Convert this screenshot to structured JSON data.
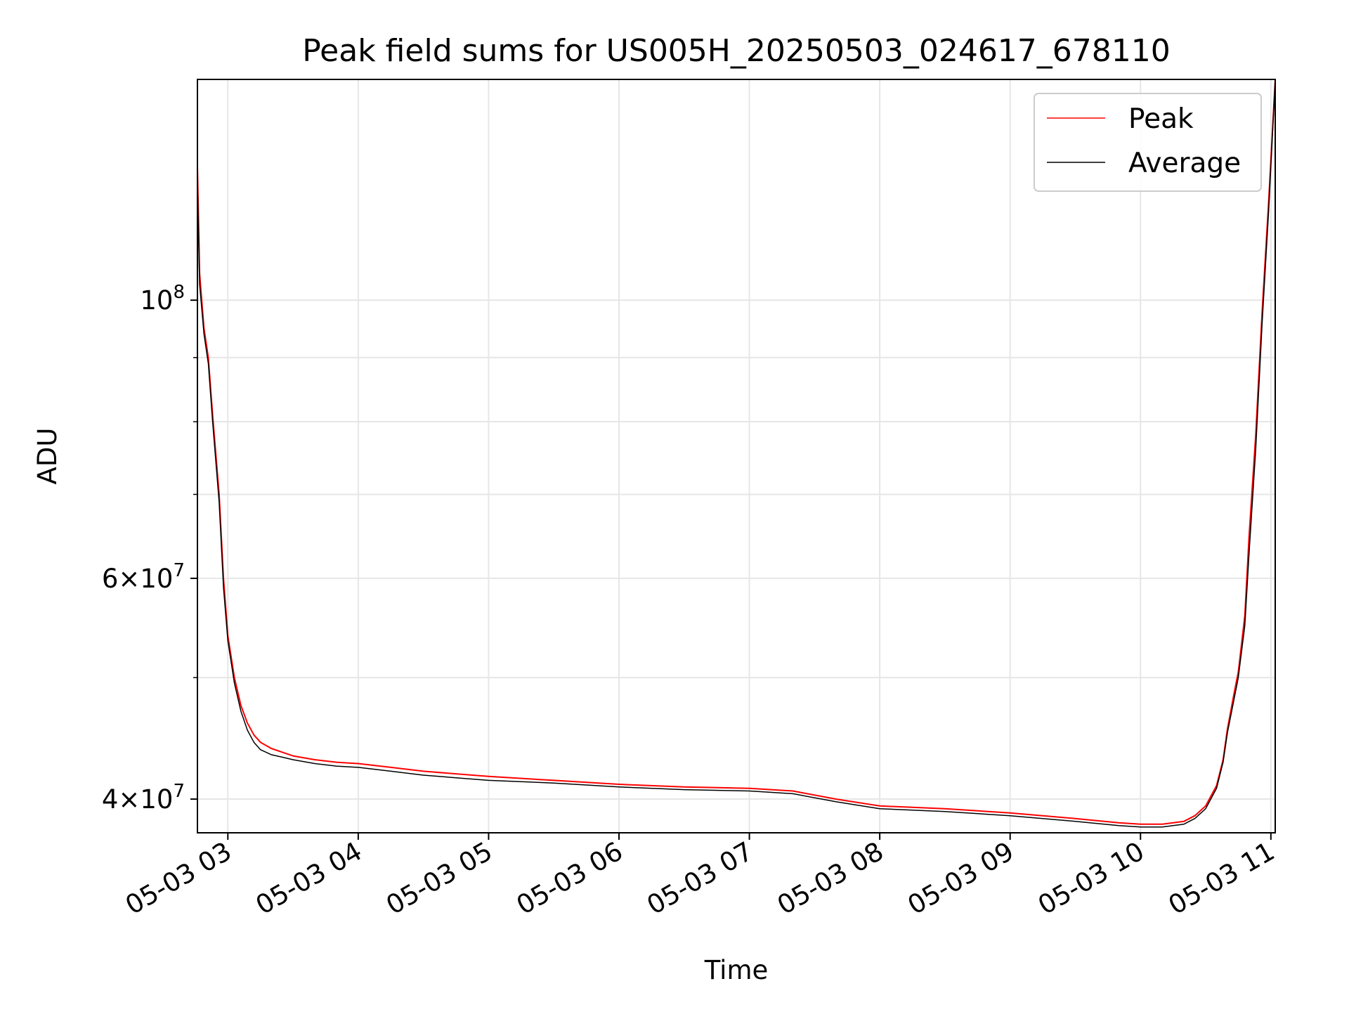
{
  "chart_data": {
    "type": "line",
    "title": "Peak field sums for US005H_20250503_024617_678110",
    "xlabel": "Time",
    "ylabel": "ADU",
    "y_scale": "log",
    "ylim": [
      37600000,
      150000000
    ],
    "xlim": [
      "2025-05-03 02:46",
      "2025-05-03 11:02"
    ],
    "grid": true,
    "legend_position": "top-right",
    "x_ticks": [
      {
        "t": "2025-05-03 03:00",
        "label": "05-03 03"
      },
      {
        "t": "2025-05-03 04:00",
        "label": "05-03 04"
      },
      {
        "t": "2025-05-03 05:00",
        "label": "05-03 05"
      },
      {
        "t": "2025-05-03 06:00",
        "label": "05-03 06"
      },
      {
        "t": "2025-05-03 07:00",
        "label": "05-03 07"
      },
      {
        "t": "2025-05-03 08:00",
        "label": "05-03 08"
      },
      {
        "t": "2025-05-03 09:00",
        "label": "05-03 09"
      },
      {
        "t": "2025-05-03 10:00",
        "label": "05-03 10"
      },
      {
        "t": "2025-05-03 11:00",
        "label": "05-03 11"
      }
    ],
    "y_ticks": [
      {
        "value": 40000000,
        "base": "4",
        "exp": "7"
      },
      {
        "value": 60000000,
        "base": "6",
        "exp": "7"
      },
      {
        "value": 100000000,
        "base": "",
        "exp": "8"
      }
    ],
    "series": [
      {
        "name": "Peak",
        "color": "#ff0000",
        "x": [
          "2025-05-03 02:46",
          "2025-05-03 02:47",
          "2025-05-03 02:49",
          "2025-05-03 02:51",
          "2025-05-03 02:53",
          "2025-05-03 02:56",
          "2025-05-03 02:58",
          "2025-05-03 03:00",
          "2025-05-03 03:03",
          "2025-05-03 03:06",
          "2025-05-03 03:09",
          "2025-05-03 03:12",
          "2025-05-03 03:15",
          "2025-05-03 03:20",
          "2025-05-03 03:25",
          "2025-05-03 03:30",
          "2025-05-03 03:40",
          "2025-05-03 03:50",
          "2025-05-03 04:00",
          "2025-05-03 04:15",
          "2025-05-03 04:30",
          "2025-05-03 04:45",
          "2025-05-03 05:00",
          "2025-05-03 05:30",
          "2025-05-03 06:00",
          "2025-05-03 06:30",
          "2025-05-03 07:00",
          "2025-05-03 07:20",
          "2025-05-03 07:40",
          "2025-05-03 08:00",
          "2025-05-03 08:30",
          "2025-05-03 09:00",
          "2025-05-03 09:30",
          "2025-05-03 09:50",
          "2025-05-03 10:00",
          "2025-05-03 10:10",
          "2025-05-03 10:20",
          "2025-05-03 10:25",
          "2025-05-03 10:30",
          "2025-05-03 10:35",
          "2025-05-03 10:38",
          "2025-05-03 10:40",
          "2025-05-03 10:43",
          "2025-05-03 10:45",
          "2025-05-03 10:48",
          "2025-05-03 10:50",
          "2025-05-03 10:53",
          "2025-05-03 10:56",
          "2025-05-03 10:59",
          "2025-05-03 11:02"
        ],
        "values": [
          128000000,
          105000000,
          95000000,
          90000000,
          81000000,
          70000000,
          60000000,
          54000000,
          50000000,
          47500000,
          46000000,
          45000000,
          44400000,
          43900000,
          43600000,
          43300000,
          43000000,
          42800000,
          42700000,
          42400000,
          42100000,
          41900000,
          41700000,
          41400000,
          41100000,
          40900000,
          40800000,
          40600000,
          40000000,
          39500000,
          39300000,
          39000000,
          38600000,
          38300000,
          38200000,
          38200000,
          38400000,
          38800000,
          39500000,
          41000000,
          43000000,
          45500000,
          48500000,
          50500000,
          56000000,
          65000000,
          78000000,
          98000000,
          120000000,
          150000000
        ]
      },
      {
        "name": "Average",
        "color": "#000000",
        "x": [
          "2025-05-03 02:46",
          "2025-05-03 02:47",
          "2025-05-03 02:49",
          "2025-05-03 02:51",
          "2025-05-03 02:53",
          "2025-05-03 02:56",
          "2025-05-03 02:58",
          "2025-05-03 03:00",
          "2025-05-03 03:03",
          "2025-05-03 03:06",
          "2025-05-03 03:09",
          "2025-05-03 03:12",
          "2025-05-03 03:15",
          "2025-05-03 03:20",
          "2025-05-03 03:25",
          "2025-05-03 03:30",
          "2025-05-03 03:40",
          "2025-05-03 03:50",
          "2025-05-03 04:00",
          "2025-05-03 04:15",
          "2025-05-03 04:30",
          "2025-05-03 04:45",
          "2025-05-03 05:00",
          "2025-05-03 05:30",
          "2025-05-03 06:00",
          "2025-05-03 06:30",
          "2025-05-03 07:00",
          "2025-05-03 07:20",
          "2025-05-03 07:40",
          "2025-05-03 08:00",
          "2025-05-03 08:30",
          "2025-05-03 09:00",
          "2025-05-03 09:30",
          "2025-05-03 09:50",
          "2025-05-03 10:00",
          "2025-05-03 10:10",
          "2025-05-03 10:20",
          "2025-05-03 10:25",
          "2025-05-03 10:30",
          "2025-05-03 10:35",
          "2025-05-03 10:38",
          "2025-05-03 10:40",
          "2025-05-03 10:43",
          "2025-05-03 10:45",
          "2025-05-03 10:48",
          "2025-05-03 10:50",
          "2025-05-03 10:53",
          "2025-05-03 10:56",
          "2025-05-03 10:59",
          "2025-05-03 11:02"
        ],
        "values": [
          124000000,
          103000000,
          94000000,
          89000000,
          80000000,
          69000000,
          59000000,
          53500000,
          49500000,
          47000000,
          45400000,
          44400000,
          43800000,
          43400000,
          43200000,
          43000000,
          42700000,
          42500000,
          42400000,
          42100000,
          41800000,
          41600000,
          41400000,
          41200000,
          40900000,
          40700000,
          40600000,
          40400000,
          39800000,
          39300000,
          39100000,
          38800000,
          38400000,
          38100000,
          38000000,
          38000000,
          38200000,
          38600000,
          39300000,
          40800000,
          42800000,
          45200000,
          48000000,
          50000000,
          55000000,
          63000000,
          76000000,
          96000000,
          118000000,
          150000000
        ]
      }
    ]
  }
}
